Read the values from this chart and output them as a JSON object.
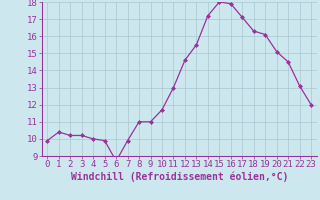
{
  "x": [
    0,
    1,
    2,
    3,
    4,
    5,
    6,
    7,
    8,
    9,
    10,
    11,
    12,
    13,
    14,
    15,
    16,
    17,
    18,
    19,
    20,
    21,
    22,
    23
  ],
  "y": [
    9.9,
    10.4,
    10.2,
    10.2,
    10.0,
    9.9,
    8.7,
    9.9,
    11.0,
    11.0,
    11.7,
    13.0,
    14.6,
    15.5,
    17.2,
    18.0,
    17.9,
    17.1,
    16.3,
    16.1,
    15.1,
    14.5,
    13.1,
    12.0
  ],
  "line_color": "#993399",
  "marker": "D",
  "marker_size": 2.0,
  "bg_color": "#cce8ee",
  "grid_color": "#aac8d0",
  "xlabel": "Windchill (Refroidissement éolien,°C)",
  "ylim": [
    9,
    18
  ],
  "xlim_min": -0.5,
  "xlim_max": 23.5,
  "yticks": [
    9,
    10,
    11,
    12,
    13,
    14,
    15,
    16,
    17,
    18
  ],
  "xticks": [
    0,
    1,
    2,
    3,
    4,
    5,
    6,
    7,
    8,
    9,
    10,
    11,
    12,
    13,
    14,
    15,
    16,
    17,
    18,
    19,
    20,
    21,
    22,
    23
  ],
  "tick_color": "#993399",
  "label_fontsize": 6.5,
  "xlabel_fontsize": 7.0,
  "axis_color": "#993399",
  "line_width": 0.9
}
